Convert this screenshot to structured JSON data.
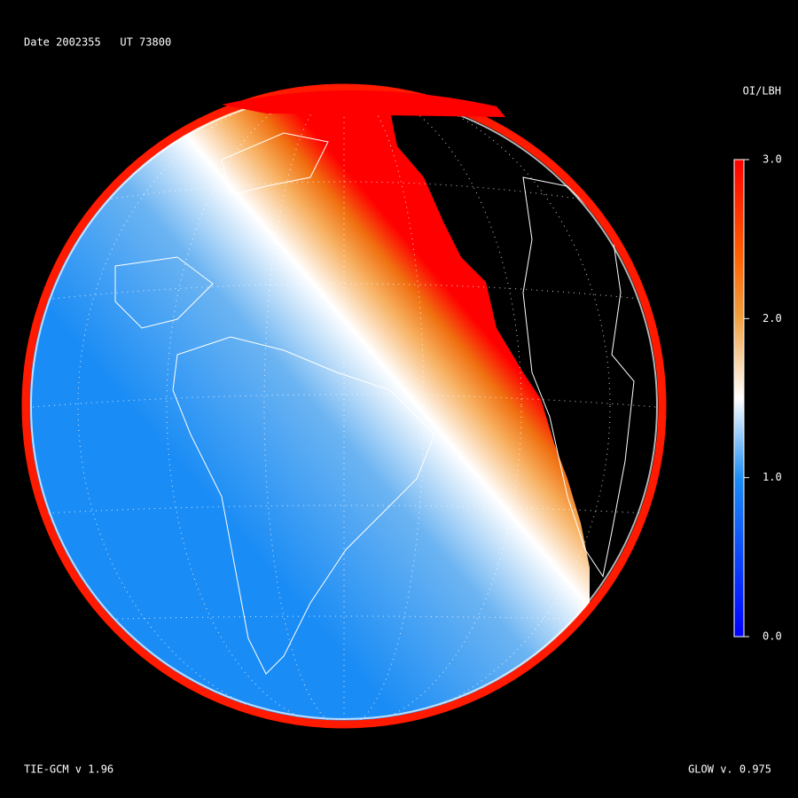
{
  "header": {
    "title": "Date 2002355   UT 73800"
  },
  "colorbar": {
    "label": "OI/LBH",
    "lim": [
      0,
      3
    ],
    "ticks": [
      {
        "value": 3,
        "label": "3.0"
      },
      {
        "value": 2,
        "label": "2.0"
      },
      {
        "value": 1,
        "label": "1.0"
      },
      {
        "value": 0,
        "label": "0.0"
      }
    ]
  },
  "footer": {
    "left": "TIE-GCM v 1.96",
    "right": "GLOW v. 0.975"
  }
}
